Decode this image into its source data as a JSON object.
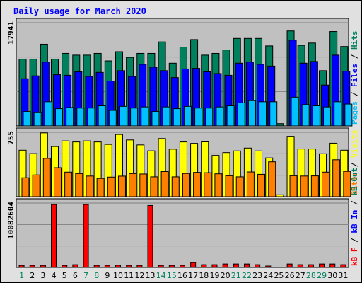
{
  "title": "Daily usage for March 2020",
  "colors": {
    "background": "#e0e0e0",
    "panel": "#c0c0c0",
    "hits": "#00805c",
    "files": "#0000ff",
    "pages": "#00c0ff",
    "visits": "#ffff00",
    "sites": "#ff8000",
    "kb_in": "#ff0000",
    "kb_out": "#0000ff",
    "title_text": "#0000ff",
    "weekend_label": "#00805c"
  },
  "chart_data": [
    {
      "type": "bar",
      "name": "hits-files-pages",
      "ymax_label": "17941",
      "ylim": [
        0,
        17941
      ],
      "right_labels": [
        {
          "text": "Pages",
          "color": "#00c0ff"
        },
        {
          "text": " / ",
          "color": "#000000"
        },
        {
          "text": "Files",
          "color": "#0000ff"
        },
        {
          "text": " / ",
          "color": "#000000"
        },
        {
          "text": "Hits",
          "color": "#00805c"
        }
      ],
      "series": [
        {
          "name": "Hits",
          "color": "#00805c",
          "values": [
            11600,
            11600,
            14200,
            11600,
            12600,
            12300,
            12300,
            12600,
            11300,
            12900,
            11900,
            12600,
            12600,
            14600,
            10900,
            13700,
            15000,
            12300,
            12600,
            13200,
            15200,
            15200,
            15200,
            13900,
            400,
            16500,
            14000,
            14400,
            9600,
            16400,
            13800
          ]
        },
        {
          "name": "Files",
          "color": "#0000ff",
          "values": [
            8200,
            8700,
            11100,
            8900,
            8800,
            9400,
            8600,
            9300,
            7800,
            9600,
            8600,
            10700,
            10200,
            9600,
            8400,
            9900,
            10000,
            9400,
            9100,
            8800,
            10900,
            11100,
            10700,
            10400,
            0,
            14900,
            10900,
            11200,
            7100,
            12300,
            9500
          ]
        },
        {
          "name": "Pages",
          "color": "#00c0ff",
          "values": [
            2500,
            2300,
            4200,
            3000,
            3200,
            3100,
            3100,
            3500,
            2700,
            3400,
            3100,
            3300,
            2500,
            3300,
            3000,
            3400,
            3100,
            3100,
            3300,
            3500,
            4000,
            4400,
            4200,
            4200,
            0,
            5000,
            3700,
            3500,
            3300,
            4200,
            3800
          ]
        }
      ]
    },
    {
      "type": "bar",
      "name": "visits-sites",
      "ymax_label": "755",
      "ylim": [
        0,
        755
      ],
      "right_labels": [
        {
          "text": "Sites",
          "color": "#ff8000"
        },
        {
          "text": " / ",
          "color": "#000000"
        },
        {
          "text": "Visits",
          "color": "#ffff00"
        }
      ],
      "series": [
        {
          "name": "Visits",
          "color": "#ffff00",
          "values": [
            545,
            505,
            748,
            588,
            654,
            642,
            654,
            642,
            613,
            729,
            665,
            607,
            538,
            682,
            557,
            642,
            625,
            643,
            484,
            517,
            537,
            570,
            537,
            455,
            22,
            708,
            559,
            559,
            503,
            627,
            545
          ]
        },
        {
          "name": "Sites",
          "color": "#ff8000",
          "values": [
            222,
            255,
            449,
            340,
            288,
            271,
            242,
            214,
            230,
            241,
            271,
            266,
            233,
            295,
            233,
            272,
            285,
            281,
            268,
            246,
            233,
            290,
            262,
            409,
            0,
            246,
            242,
            244,
            288,
            433,
            297
          ]
        }
      ]
    },
    {
      "type": "bar",
      "name": "kbytes",
      "ymax_label": "10082604",
      "ylim": [
        0,
        10082604
      ],
      "right_labels": [
        {
          "text": "kB F",
          "color": "#ff0000"
        },
        {
          "text": " / ",
          "color": "#000000"
        },
        {
          "text": "kB In",
          "color": "#0000ff"
        },
        {
          "text": " / ",
          "color": "#000000"
        },
        {
          "text": "kB Out",
          "color": "#00805c"
        }
      ],
      "series": [
        {
          "name": "kB F",
          "color": "#ff0000",
          "values": [
            320000,
            320000,
            320000,
            9850000,
            320000,
            430000,
            9850000,
            330000,
            320000,
            340000,
            320000,
            320000,
            9700000,
            320000,
            320000,
            320000,
            760000,
            430000,
            430000,
            540000,
            540000,
            540000,
            430000,
            220000,
            0,
            540000,
            430000,
            430000,
            540000,
            540000,
            430000
          ]
        }
      ]
    }
  ],
  "days": [
    {
      "label": "1",
      "weekend": true
    },
    {
      "label": "2",
      "weekend": false
    },
    {
      "label": "3",
      "weekend": false
    },
    {
      "label": "4",
      "weekend": false
    },
    {
      "label": "5",
      "weekend": false
    },
    {
      "label": "6",
      "weekend": false
    },
    {
      "label": "7",
      "weekend": true
    },
    {
      "label": "8",
      "weekend": true
    },
    {
      "label": "9",
      "weekend": false
    },
    {
      "label": "10",
      "weekend": false
    },
    {
      "label": "11",
      "weekend": false
    },
    {
      "label": "12",
      "weekend": false
    },
    {
      "label": "13",
      "weekend": false
    },
    {
      "label": "14",
      "weekend": true
    },
    {
      "label": "15",
      "weekend": true
    },
    {
      "label": "16",
      "weekend": false
    },
    {
      "label": "17",
      "weekend": false
    },
    {
      "label": "18",
      "weekend": false
    },
    {
      "label": "19",
      "weekend": false
    },
    {
      "label": "20",
      "weekend": false
    },
    {
      "label": "21",
      "weekend": true
    },
    {
      "label": "22",
      "weekend": true
    },
    {
      "label": "23",
      "weekend": false
    },
    {
      "label": "24",
      "weekend": false
    },
    {
      "label": "25",
      "weekend": false
    },
    {
      "label": "26",
      "weekend": false
    },
    {
      "label": "27",
      "weekend": false
    },
    {
      "label": "28",
      "weekend": true
    },
    {
      "label": "29",
      "weekend": true
    },
    {
      "label": "30",
      "weekend": false
    },
    {
      "label": "31",
      "weekend": false
    }
  ]
}
